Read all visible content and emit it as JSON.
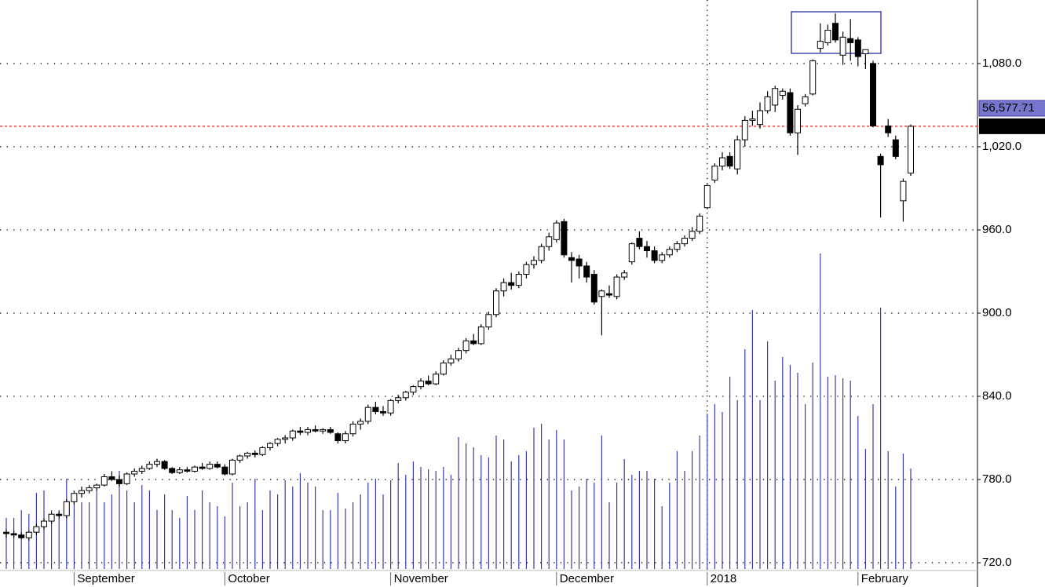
{
  "chart_data": {
    "type": "candlestick",
    "categories": [
      null,
      null,
      null,
      null,
      null,
      null,
      null,
      null,
      null,
      "September",
      null,
      null,
      null,
      null,
      null,
      null,
      null,
      null,
      null,
      null,
      null,
      null,
      null,
      null,
      null,
      null,
      null,
      null,
      null,
      "October",
      null,
      null,
      null,
      null,
      null,
      null,
      null,
      null,
      null,
      null,
      null,
      null,
      null,
      null,
      null,
      null,
      null,
      null,
      null,
      null,
      null,
      "November",
      null,
      null,
      null,
      null,
      null,
      null,
      null,
      null,
      null,
      null,
      null,
      null,
      null,
      null,
      null,
      null,
      null,
      null,
      null,
      null,
      null,
      "December",
      null,
      null,
      null,
      null,
      null,
      null,
      null,
      null,
      null,
      null,
      null,
      null,
      null,
      null,
      null,
      null,
      null,
      null,
      null,
      "2018",
      null,
      null,
      null,
      null,
      null,
      null,
      null,
      null,
      null,
      null,
      null,
      null,
      null,
      null,
      null,
      null,
      null,
      null,
      null,
      "February",
      null,
      null,
      null,
      null,
      null,
      null,
      null
    ],
    "open": [
      742,
      741,
      740,
      738,
      742,
      746,
      750,
      755,
      754,
      764,
      770,
      772,
      774,
      776,
      782,
      780,
      777,
      784,
      786,
      788,
      791,
      793,
      788,
      785,
      787,
      786,
      789,
      788,
      791,
      789,
      784,
      794,
      797,
      799,
      798,
      803,
      806,
      809,
      810,
      815,
      814,
      816,
      815,
      816,
      813,
      808,
      813,
      820,
      822,
      832,
      829,
      828,
      837,
      839,
      843,
      847,
      851,
      849,
      856,
      864,
      867,
      873,
      880,
      878,
      890,
      899,
      916,
      922,
      920,
      928,
      935,
      938,
      948,
      953,
      966,
      940,
      939,
      934,
      928,
      912,
      914,
      912,
      926,
      937,
      954,
      948,
      945,
      938,
      942,
      946,
      950,
      954,
      959,
      976,
      996,
      1006,
      1013,
      1004,
      1025,
      1039,
      1036,
      1046,
      1050,
      1057,
      1059,
      1030,
      1051,
      1058,
      1091,
      1095,
      1109,
      1086,
      1098,
      1097,
      1087,
      1080,
      1013,
      1035,
      1025,
      981,
      1001
    ],
    "high": [
      744,
      743,
      742,
      743,
      748,
      752,
      756,
      757,
      766,
      772,
      775,
      776,
      777,
      784,
      786,
      783,
      785,
      788,
      790,
      793,
      795,
      794,
      789,
      789,
      789,
      790,
      792,
      793,
      793,
      791,
      795,
      798,
      800,
      801,
      804,
      807,
      810,
      812,
      816,
      818,
      818,
      819,
      817,
      818,
      814,
      815,
      822,
      824,
      834,
      836,
      833,
      838,
      841,
      844,
      848,
      853,
      855,
      858,
      866,
      870,
      875,
      882,
      885,
      892,
      901,
      918,
      925,
      929,
      930,
      937,
      941,
      950,
      958,
      967,
      968,
      944,
      942,
      937,
      931,
      917,
      920,
      928,
      931,
      951,
      959,
      952,
      948,
      944,
      948,
      952,
      956,
      962,
      972,
      993,
      1008,
      1016,
      1016,
      1028,
      1042,
      1046,
      1052,
      1060,
      1064,
      1062,
      1062,
      1050,
      1058,
      1083,
      1109,
      1108,
      1116,
      1103,
      1112,
      1099,
      1090,
      1082,
      1015,
      1040,
      1028,
      997,
      1036
    ],
    "low": [
      738,
      738,
      737,
      736,
      740,
      744,
      748,
      752,
      752,
      762,
      767,
      770,
      772,
      775,
      779,
      775,
      776,
      782,
      784,
      787,
      789,
      787,
      784,
      784,
      785,
      785,
      787,
      787,
      788,
      783,
      783,
      792,
      795,
      796,
      797,
      801,
      804,
      806,
      808,
      812,
      812,
      814,
      813,
      813,
      806,
      806,
      811,
      816,
      820,
      827,
      826,
      826,
      835,
      837,
      841,
      845,
      848,
      848,
      855,
      862,
      865,
      871,
      877,
      877,
      888,
      897,
      912,
      917,
      918,
      925,
      932,
      936,
      945,
      951,
      940,
      922,
      925,
      922,
      906,
      884,
      911,
      910,
      924,
      935,
      946,
      940,
      936,
      936,
      940,
      944,
      948,
      952,
      957,
      975,
      994,
      1003,
      1004,
      1000,
      1020,
      1035,
      1033,
      1044,
      1045,
      1054,
      1028,
      1014,
      1049,
      1057,
      1088,
      1093,
      1095,
      1079,
      1082,
      1078,
      1076,
      1034,
      969,
      1027,
      1011,
      966,
      999
    ],
    "close": [
      741,
      740,
      738,
      742,
      746,
      750,
      755,
      754,
      764,
      770,
      772,
      774,
      776,
      782,
      780,
      777,
      784,
      786,
      788,
      791,
      793,
      788,
      785,
      787,
      786,
      789,
      788,
      791,
      789,
      784,
      794,
      797,
      799,
      798,
      803,
      806,
      809,
      810,
      815,
      814,
      816,
      815,
      816,
      814,
      808,
      813,
      820,
      822,
      832,
      829,
      828,
      837,
      839,
      843,
      847,
      851,
      849,
      856,
      864,
      867,
      873,
      880,
      878,
      890,
      899,
      916,
      922,
      920,
      928,
      935,
      938,
      948,
      955,
      965,
      942,
      938,
      934,
      926,
      908,
      916,
      913,
      926,
      929,
      950,
      948,
      945,
      938,
      942,
      946,
      950,
      954,
      959,
      970,
      992,
      1006,
      1012,
      1006,
      1025,
      1039,
      1040,
      1046,
      1056,
      1062,
      1060,
      1030,
      1047,
      1056,
      1082,
      1096,
      1104,
      1097,
      1099,
      1095,
      1085,
      1090,
      1035,
      1007,
      1030,
      1013,
      995,
      1034.76
    ],
    "volume": {
      "color": "#3a3ab0",
      "axis": "y2",
      "values": [
        6500,
        6500,
        7500,
        7000,
        9700,
        10000,
        7500,
        7500,
        11500,
        9500,
        8500,
        8500,
        10000,
        8500,
        9500,
        12500,
        10000,
        8500,
        10700,
        10000,
        7500,
        9500,
        7500,
        6500,
        9300,
        7500,
        10000,
        8500,
        8000,
        6700,
        11000,
        8000,
        8500,
        11500,
        7500,
        10000,
        9500,
        11300,
        10500,
        12200,
        11000,
        10500,
        7500,
        7500,
        9700,
        7700,
        8500,
        9500,
        11000,
        11500,
        9500,
        11300,
        13500,
        12000,
        13700,
        13000,
        12700,
        12500,
        13000,
        12000,
        16800,
        16000,
        15500,
        14500,
        14200,
        17000,
        16500,
        13700,
        14500,
        15000,
        18000,
        18500,
        16500,
        17700,
        16500,
        10000,
        10500,
        11500,
        11000,
        17000,
        8500,
        11000,
        14000,
        12000,
        12500,
        12500,
        11500,
        8000,
        11000,
        15000,
        12500,
        15000,
        17000,
        19800,
        21000,
        20000,
        24500,
        21500,
        28000,
        33000,
        21500,
        29000,
        24000,
        27000,
        26000,
        25000,
        21000,
        26300,
        40200,
        24500,
        24700,
        24300,
        24000,
        19500,
        15300,
        21000,
        33300,
        15000,
        10500,
        14700,
        12800
      ]
    },
    "volume_label": "56,577.71",
    "reference_line": {
      "value": 1034.76,
      "label": "1,034.76",
      "color": "#e02020"
    },
    "ylim": [
      702.5,
      1125.8
    ],
    "yticks": [
      {
        "value": 720,
        "label": "720.0"
      },
      {
        "value": 780,
        "label": "780.0"
      },
      {
        "value": 840,
        "label": "840.0"
      },
      {
        "value": 900,
        "label": "900.0"
      },
      {
        "value": 960,
        "label": "960.0"
      },
      {
        "value": 1020,
        "label": "1,020.0"
      },
      {
        "value": 1080,
        "label": "1,080.0"
      }
    ],
    "y2lim": [
      0,
      72500
    ],
    "grid": true
  }
}
